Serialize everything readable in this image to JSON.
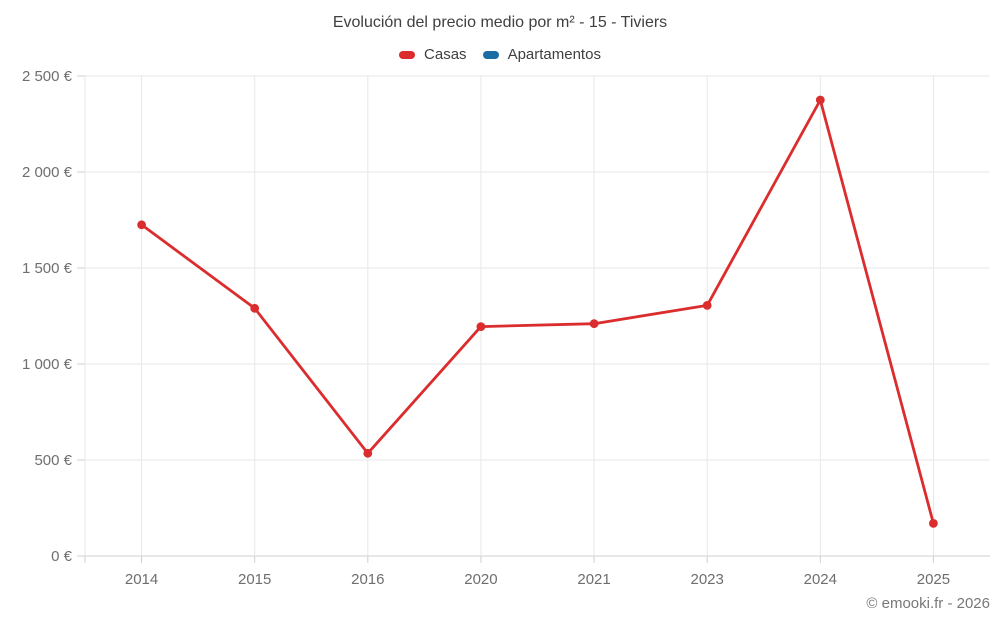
{
  "title": "Evolución del precio medio por m² - 15 - Tiviers",
  "footer_credit": "© emooki.fr - 2026",
  "colors": {
    "casas": "#db2d2d",
    "apartamentos": "#1b6ca3",
    "gridline": "#e7e7e7",
    "axis_tick": "#cfcfcf",
    "tick_text": "#6e6e6e",
    "title_text": "#404040"
  },
  "legend": {
    "items": [
      {
        "label": "Casas",
        "color": "#db2d2d"
      },
      {
        "label": "Apartamentos",
        "color": "#1b6ca3"
      }
    ]
  },
  "chart_data": {
    "type": "line",
    "title": "Evolución del precio medio por m² - 15 - Tiviers",
    "categories": [
      "2014",
      "2015",
      "2016",
      "2020",
      "2021",
      "2023",
      "2024",
      "2025"
    ],
    "series": [
      {
        "name": "Casas",
        "color": "#db2d2d",
        "values": [
          1725,
          1290,
          535,
          1195,
          1210,
          1305,
          2375,
          170
        ]
      },
      {
        "name": "Apartamentos",
        "color": "#1b6ca3",
        "values": []
      }
    ],
    "xlabel": "",
    "ylabel": "",
    "ylim": [
      0,
      2500
    ],
    "ytick_step": 500,
    "ytick_labels": [
      "0 €",
      "500 €",
      "1 000 €",
      "1 500 €",
      "2 000 €",
      "2 500 €"
    ],
    "grid": true,
    "legend_position": "top",
    "annotations": []
  }
}
